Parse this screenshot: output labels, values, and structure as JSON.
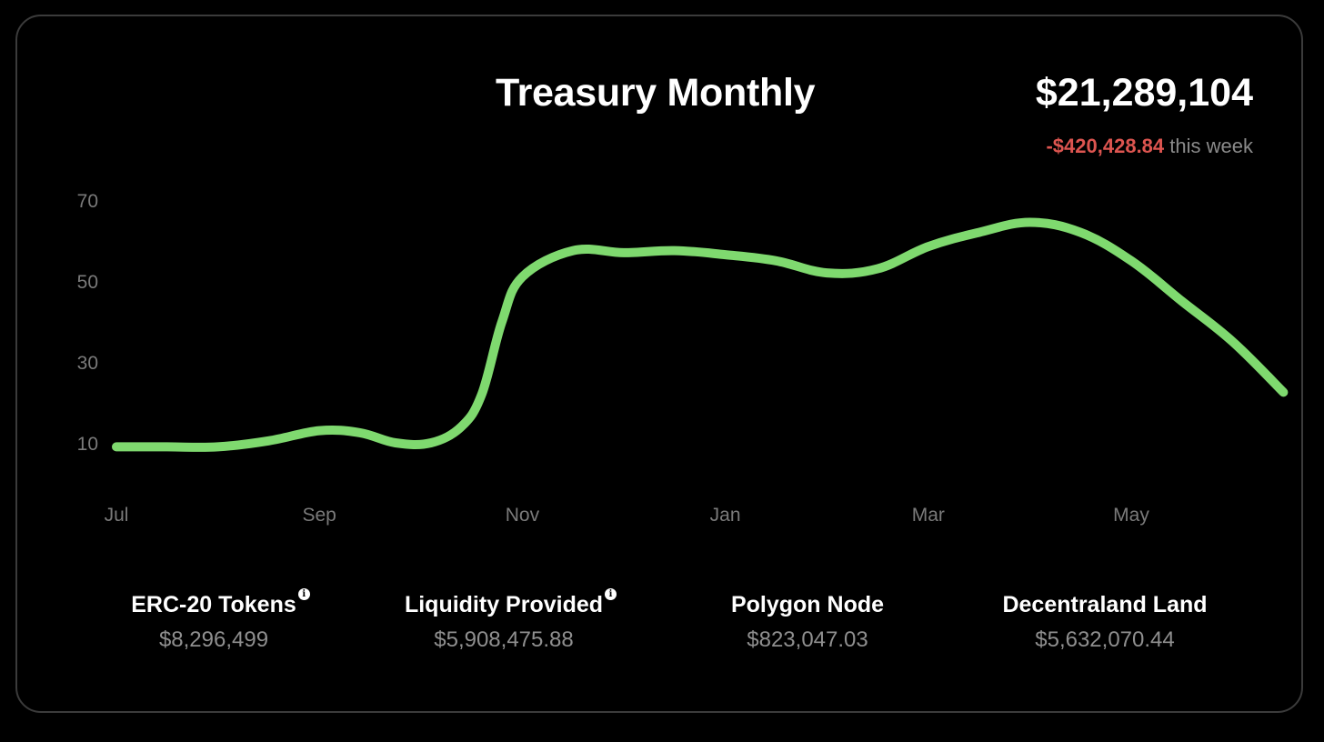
{
  "header": {
    "title": "Treasury Monthly",
    "total": "$21,289,104",
    "change_value": "-$420,428.84",
    "change_label": "this week"
  },
  "stats": [
    {
      "label": "ERC-20 Tokens",
      "value": "$8,296,499",
      "info_icon": "info-icon"
    },
    {
      "label": "Liquidity Provided",
      "value": "$5,908,475.88",
      "info_icon": "info-icon"
    },
    {
      "label": "Polygon Node",
      "value": "$823,047.03"
    },
    {
      "label": "Decentraland Land",
      "value": "$5,632,070.44"
    }
  ],
  "colors": {
    "line": "#7fd96f",
    "negative": "#dd5550",
    "axis_text": "#7a7a7a",
    "border": "#3b3b3b",
    "background": "#000000"
  },
  "chart_data": {
    "type": "line",
    "title": "Treasury Monthly",
    "xlabel": "",
    "ylabel": "",
    "x_ticks": [
      "Jul",
      "Sep",
      "Nov",
      "Jan",
      "Mar",
      "May"
    ],
    "y_ticks": [
      10,
      30,
      50,
      70
    ],
    "grid": false,
    "series": [
      {
        "x": [
          0,
          0.5,
          1,
          1.5,
          2,
          2.4,
          2.75,
          3.1,
          3.4,
          3.6,
          3.8,
          4.0,
          4.5,
          5.0,
          5.5,
          6.0,
          6.5,
          7.0,
          7.5,
          8.0,
          8.5,
          9.0,
          9.5,
          10.0,
          10.5,
          11.0,
          11.5
        ],
        "y": [
          9,
          9,
          9,
          10.5,
          13,
          12.5,
          10,
          10,
          14,
          22,
          40,
          51,
          57.5,
          57,
          57.5,
          56.5,
          55,
          52,
          53,
          58.5,
          62,
          64.5,
          62,
          55,
          45,
          35,
          22.5
        ]
      }
    ],
    "xlim": [
      0,
      11.5
    ],
    "ylim": [
      0,
      75
    ]
  }
}
